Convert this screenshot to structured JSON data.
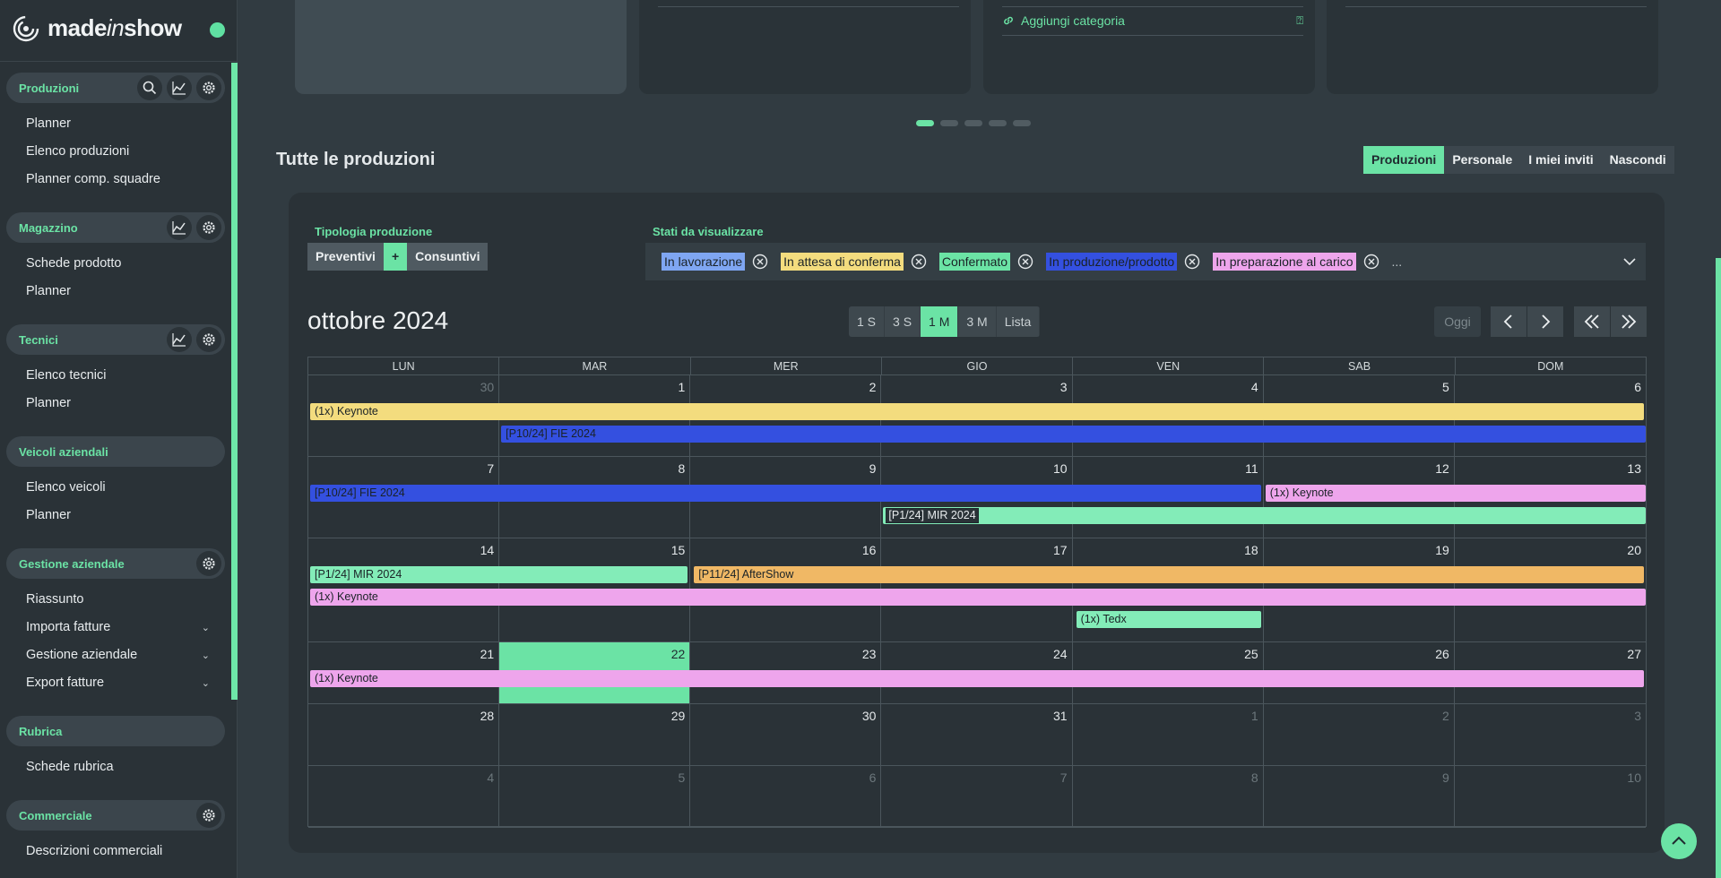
{
  "brand": {
    "name_start": "made",
    "name_mid": "in",
    "name_end": "show"
  },
  "sidebar": {
    "sections": [
      {
        "title": "Produzioni",
        "items": [
          "Planner",
          "Elenco produzioni",
          "Planner comp. squadre"
        ]
      },
      {
        "title": "Magazzino",
        "items": [
          "Schede prodotto",
          "Planner"
        ]
      },
      {
        "title": "Tecnici",
        "items": [
          "Elenco tecnici",
          "Planner"
        ]
      },
      {
        "title": "Veicoli aziendali",
        "items": [
          "Elenco veicoli",
          "Planner"
        ]
      },
      {
        "title": "Gestione aziendale",
        "items": [
          "Riassunto",
          "Importa fatture",
          "Gestione aziendale",
          "Export fatture"
        ]
      },
      {
        "title": "Rubrica",
        "items": [
          "Schede rubrica"
        ]
      },
      {
        "title": "Commerciale",
        "items": [
          "Descrizioni commerciali"
        ]
      }
    ]
  },
  "carousel": {
    "add_category": "Aggiungi categoria",
    "active_dot": 1,
    "dot_count": 5
  },
  "productions": {
    "title": "Tutte le produzioni",
    "view_tabs": [
      "Produzioni",
      "Personale",
      "I miei inviti",
      "Nascondi"
    ],
    "active_view_tab": "Produzioni",
    "tipologia_label": "Tipologia produzione",
    "tipologia_options": [
      "Preventivi",
      "+",
      "Consuntivi"
    ],
    "stati_label": "Stati da visualizzare",
    "stati": [
      {
        "label": "In lavorazione",
        "color": "#7fa6f2"
      },
      {
        "label": "In attesa di conferma",
        "color": "#f3dc7e"
      },
      {
        "label": "Confermato",
        "color": "#6be3a5"
      },
      {
        "label": "In produzione/prodotto",
        "color": "#3450e0"
      },
      {
        "label": "In preparazione al carico",
        "color": "#eea5ec"
      }
    ],
    "stati_more": "...",
    "month_title": "ottobre 2024",
    "range_buttons": [
      "1 S",
      "3 S",
      "1 M",
      "3 M",
      "Lista"
    ],
    "active_range": "1 M",
    "today_label": "Oggi"
  },
  "calendar": {
    "weekdays": [
      "LUN",
      "MAR",
      "MER",
      "GIO",
      "VEN",
      "SAB",
      "DOM"
    ],
    "weeks": [
      [
        30,
        1,
        2,
        3,
        4,
        5,
        6
      ],
      [
        7,
        8,
        9,
        10,
        11,
        12,
        13
      ],
      [
        14,
        15,
        16,
        17,
        18,
        19,
        20
      ],
      [
        21,
        22,
        23,
        24,
        25,
        26,
        27
      ],
      [
        28,
        29,
        30,
        31,
        1,
        2,
        3
      ],
      [
        4,
        5,
        6,
        7,
        8,
        9,
        10
      ]
    ],
    "today": "22",
    "events": [
      {
        "title": "(1x) Keynote",
        "color": "#f3dc7e"
      },
      {
        "title": "[P10/24] FIE 2024",
        "color": "#3450e0"
      },
      {
        "title": "[P10/24] FIE 2024",
        "color": "#3450e0"
      },
      {
        "title": "(1x) Keynote",
        "color": "#eea5ec"
      },
      {
        "title": "[P1/24] MIR 2024",
        "color": "#83ecb8"
      },
      {
        "title": "[P1/24] MIR 2024",
        "color": "#83ecb8"
      },
      {
        "title": "[P11/24] AfterShow",
        "color": "#f0b865"
      },
      {
        "title": "(1x) Keynote",
        "color": "#eea5ec"
      },
      {
        "title": "(1x) Tedx",
        "color": "#83ecb8"
      },
      {
        "title": "(1x) Keynote",
        "color": "#eea5ec"
      }
    ]
  }
}
